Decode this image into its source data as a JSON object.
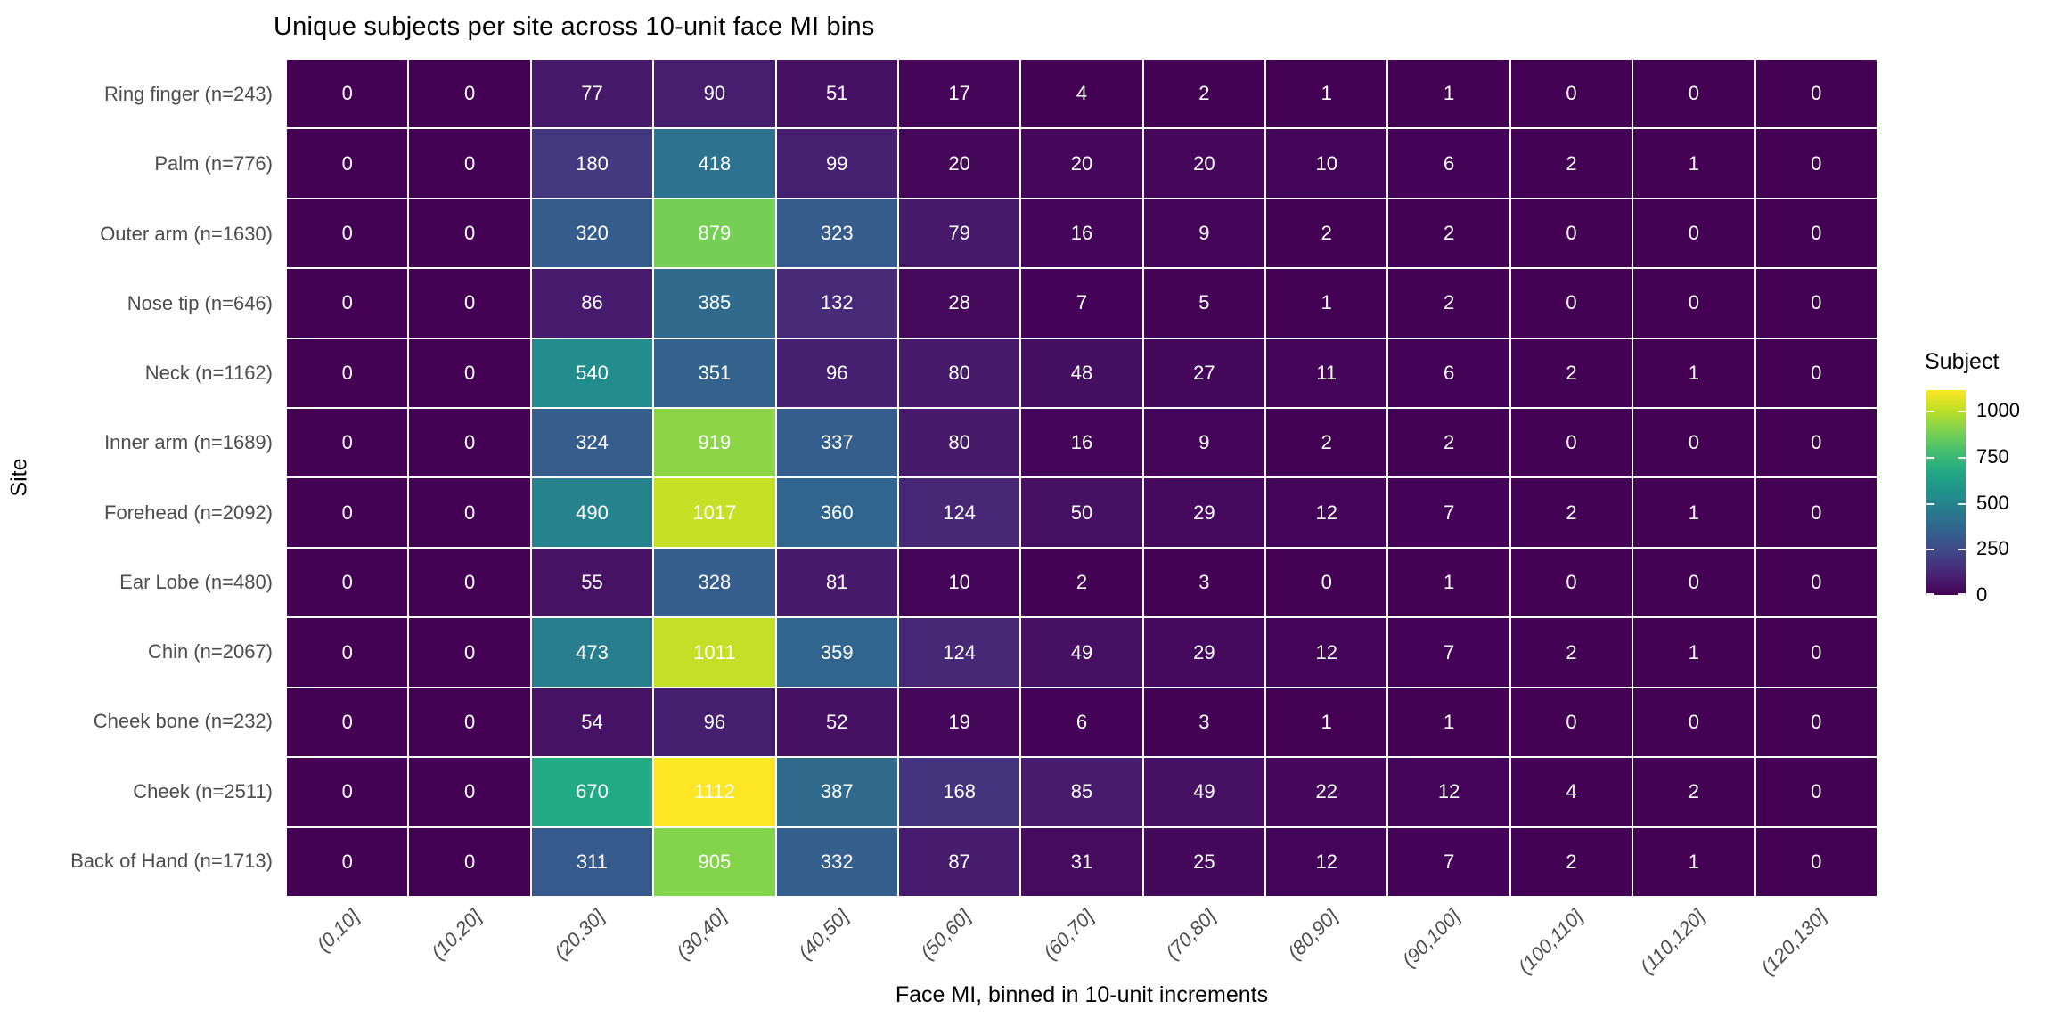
{
  "chart_data": {
    "type": "heatmap",
    "title": "Unique subjects per site across 10-unit face MI bins",
    "xlabel": "Face MI, binned in 10-unit increments",
    "ylabel": "Site",
    "x_categories": [
      "(0,10]",
      "(10,20]",
      "(20,30]",
      "(30,40]",
      "(40,50]",
      "(50,60]",
      "(60,70]",
      "(70,80]",
      "(80,90]",
      "(90,100]",
      "(100,110]",
      "(110,120]",
      "(120,130]"
    ],
    "y_categories": [
      "Ring finger (n=243)",
      "Palm (n=776)",
      "Outer arm (n=1630)",
      "Nose tip (n=646)",
      "Neck (n=1162)",
      "Inner arm (n=1689)",
      "Forehead (n=2092)",
      "Ear Lobe (n=480)",
      "Chin (n=2067)",
      "Cheek bone (n=232)",
      "Cheek (n=2511)",
      "Back of Hand (n=1713)"
    ],
    "values": [
      [
        0,
        0,
        77,
        90,
        51,
        17,
        4,
        2,
        1,
        1,
        0,
        0,
        0
      ],
      [
        0,
        0,
        180,
        418,
        99,
        20,
        20,
        20,
        10,
        6,
        2,
        1,
        0
      ],
      [
        0,
        0,
        320,
        879,
        323,
        79,
        16,
        9,
        2,
        2,
        0,
        0,
        0
      ],
      [
        0,
        0,
        86,
        385,
        132,
        28,
        7,
        5,
        1,
        2,
        0,
        0,
        0
      ],
      [
        0,
        0,
        540,
        351,
        96,
        80,
        48,
        27,
        11,
        6,
        2,
        1,
        0
      ],
      [
        0,
        0,
        324,
        919,
        337,
        80,
        16,
        9,
        2,
        2,
        0,
        0,
        0
      ],
      [
        0,
        0,
        490,
        1017,
        360,
        124,
        50,
        29,
        12,
        7,
        2,
        1,
        0
      ],
      [
        0,
        0,
        55,
        328,
        81,
        10,
        2,
        3,
        0,
        1,
        0,
        0,
        0
      ],
      [
        0,
        0,
        473,
        1011,
        359,
        124,
        49,
        29,
        12,
        7,
        2,
        1,
        0
      ],
      [
        0,
        0,
        54,
        96,
        52,
        19,
        6,
        3,
        1,
        1,
        0,
        0,
        0
      ],
      [
        0,
        0,
        670,
        1112,
        387,
        168,
        85,
        49,
        22,
        12,
        4,
        2,
        0
      ],
      [
        0,
        0,
        311,
        905,
        332,
        87,
        31,
        25,
        12,
        7,
        2,
        1,
        0
      ]
    ],
    "legend": {
      "title": "Subject",
      "ticks": [
        1000,
        750,
        500,
        250,
        0
      ],
      "domain": [
        0,
        1112
      ],
      "colormap": "viridis",
      "colormap_stops": [
        [
          0.0,
          "#440154"
        ],
        [
          0.1,
          "#482475"
        ],
        [
          0.2,
          "#414487"
        ],
        [
          0.3,
          "#355f8d"
        ],
        [
          0.4,
          "#2a788e"
        ],
        [
          0.5,
          "#21918c"
        ],
        [
          0.6,
          "#22a884"
        ],
        [
          0.7,
          "#44bf70"
        ],
        [
          0.8,
          "#7ad151"
        ],
        [
          0.9,
          "#bddf26"
        ],
        [
          1.0,
          "#fde725"
        ]
      ],
      "position": "right"
    },
    "grid": false,
    "cell_text_color": "#ffffff",
    "tick_label_color": "#4d4d4d",
    "title_color": "#000000"
  }
}
